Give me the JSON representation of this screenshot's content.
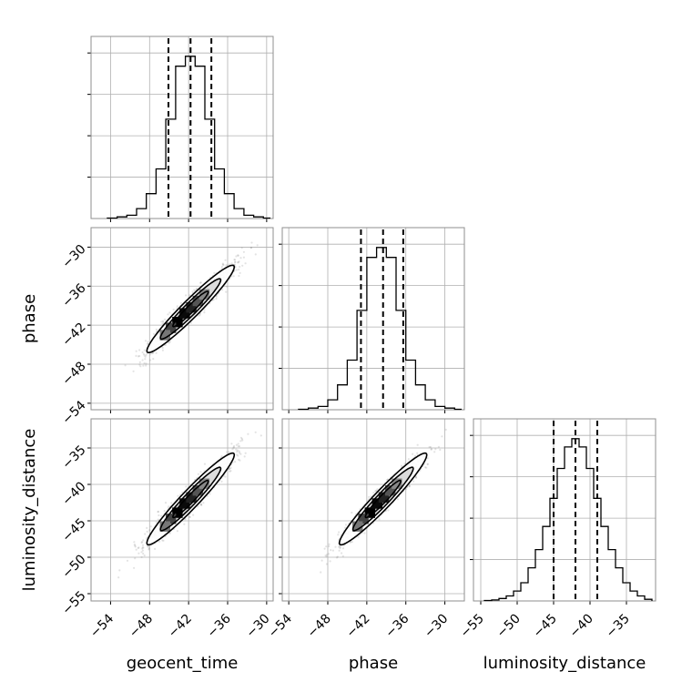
{
  "chart_data": {
    "type": "corner",
    "parameters": [
      "geocent_time",
      "phase",
      "luminosity_distance"
    ],
    "axes": {
      "geocent_time": {
        "range": [
          -57,
          -29
        ],
        "ticks": [
          -54,
          -48,
          -42,
          -36,
          -30
        ],
        "tick_labels": [
          "−54",
          "−48",
          "−42",
          "−36",
          "−30"
        ]
      },
      "phase": {
        "range": [
          -55,
          -27
        ],
        "ticks": [
          -54,
          -48,
          -42,
          -36,
          -30
        ],
        "tick_labels": [
          "−54",
          "−48",
          "−42",
          "−36",
          "−30"
        ]
      },
      "luminosity_distance": {
        "range": [
          -56,
          -31
        ],
        "ticks": [
          -55,
          -50,
          -45,
          -40,
          -35
        ],
        "tick_labels": [
          "−55",
          "−50",
          "−45",
          "−40",
          "−35"
        ]
      }
    },
    "histograms": [
      {
        "parameter": "geocent_time",
        "bin_edges": [
          -54.5,
          -53,
          -51.5,
          -50,
          -48.5,
          -47,
          -45.5,
          -44,
          -42.5,
          -41,
          -39.5,
          -38,
          -36.5,
          -35,
          -33.5,
          -32,
          -30.5,
          -29.5
        ],
        "counts": [
          0.3,
          1,
          2,
          6,
          15,
          30,
          60,
          92,
          98,
          92,
          60,
          30,
          15,
          6,
          2,
          1,
          0.3
        ],
        "ylim": [
          0,
          110
        ],
        "quantiles": [
          -45.1,
          -41.7,
          -38.5
        ]
      },
      {
        "parameter": "phase",
        "bin_edges": [
          -52.5,
          -51,
          -49.5,
          -48,
          -46.5,
          -45,
          -43.5,
          -42,
          -40.5,
          -39,
          -37.5,
          -36,
          -34.5,
          -33,
          -31.5,
          -30,
          -28.5,
          -27.5
        ],
        "counts": [
          0.3,
          1,
          2,
          6,
          15,
          30,
          60,
          92,
          98,
          92,
          60,
          30,
          15,
          6,
          2,
          1,
          0.3
        ],
        "ylim": [
          0,
          110
        ],
        "quantiles": [
          -42.9,
          -39.5,
          -36.4
        ]
      },
      {
        "parameter": "luminosity_distance",
        "bin_edges": [
          -54.5,
          -53.5,
          -52.5,
          -51.5,
          -50.5,
          -49.5,
          -48.5,
          -47.5,
          -46.5,
          -45.5,
          -44.5,
          -43.5,
          -42.5,
          -41.5,
          -40.5,
          -39.5,
          -38.5,
          -37.5,
          -36.5,
          -35.5,
          -34.5,
          -33.5,
          -32.5,
          -31.5
        ],
        "counts": [
          0.3,
          0.6,
          1.5,
          3,
          6,
          11,
          20,
          31,
          45,
          62,
          80,
          93,
          98,
          93,
          80,
          62,
          45,
          31,
          20,
          11,
          6,
          3,
          1
        ],
        "ylim": [
          0,
          110
        ],
        "quantiles": [
          -45.0,
          -42.0,
          -39.0
        ]
      }
    ],
    "density_panels": [
      {
        "x": "geocent_time",
        "y": "phase",
        "center": [
          -41.7,
          -39.5
        ],
        "sigma": [
          3.2,
          3.2
        ],
        "correlation": 0.96
      },
      {
        "x": "geocent_time",
        "y": "luminosity_distance",
        "center": [
          -41.7,
          -42.0
        ],
        "sigma": [
          3.2,
          3.0
        ],
        "correlation": 0.96
      },
      {
        "x": "phase",
        "y": "luminosity_distance",
        "center": [
          -39.5,
          -42.0
        ],
        "sigma": [
          3.2,
          3.0
        ],
        "correlation": 0.96
      }
    ],
    "grid": true
  }
}
